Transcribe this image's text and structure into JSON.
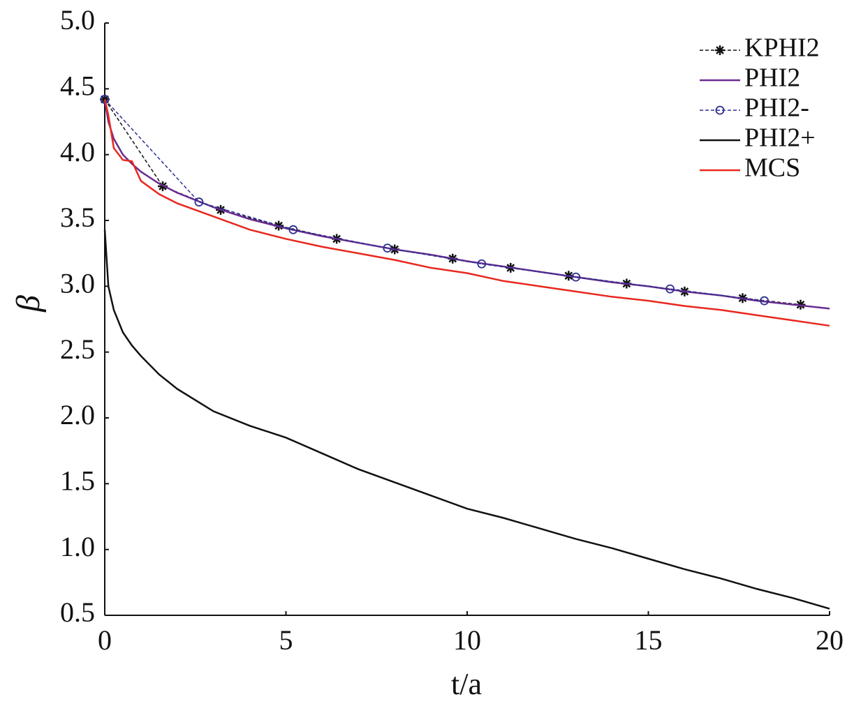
{
  "chart_data": {
    "type": "line",
    "x_label": "t/a",
    "y_label": "β",
    "xlim": [
      0,
      20
    ],
    "ylim": [
      0.5,
      5.0
    ],
    "xticks": [
      0,
      5,
      10,
      15,
      20
    ],
    "yticks": [
      0.5,
      {
        "value": 1,
        "label": "1.0"
      },
      1.5,
      {
        "value": 2,
        "label": "2.0"
      },
      2.5,
      {
        "value": 3,
        "label": "3.0"
      },
      3.5,
      {
        "value": 4,
        "label": "4.0"
      },
      4.5,
      {
        "value": 5,
        "label": "5.0"
      }
    ],
    "grid": false,
    "legend": "upper right",
    "x": [
      0,
      0.1,
      0.25,
      0.5,
      0.75,
      1,
      1.5,
      2,
      3,
      4,
      5,
      6,
      7,
      8,
      9,
      10,
      11,
      12,
      13,
      14,
      15,
      16,
      17,
      18,
      19,
      20
    ],
    "series": [
      {
        "name": "KPHI2",
        "color": "#111111",
        "marker": "star",
        "dash": true,
        "x": [
          0,
          1.6,
          3.2,
          4.8,
          6.4,
          8.0,
          9.6,
          11.2,
          12.8,
          14.4,
          16.0,
          17.6,
          19.2
        ],
        "values": [
          4.42,
          3.76,
          3.58,
          3.46,
          3.36,
          3.28,
          3.21,
          3.14,
          3.08,
          3.02,
          2.96,
          2.91,
          2.86
        ]
      },
      {
        "name": "PHI2",
        "color": "#6a2c91",
        "values": [
          4.42,
          4.25,
          4.12,
          4.0,
          3.93,
          3.87,
          3.78,
          3.71,
          3.6,
          3.51,
          3.44,
          3.38,
          3.33,
          3.28,
          3.24,
          3.19,
          3.15,
          3.11,
          3.07,
          3.03,
          3.0,
          2.96,
          2.93,
          2.89,
          2.86,
          2.83
        ]
      },
      {
        "name": "PHI2-",
        "color": "#2b2f8f",
        "marker": "circle",
        "dash": true,
        "x": [
          0,
          2.6,
          5.2,
          7.8,
          10.4,
          13.0,
          15.6,
          18.2
        ],
        "values": [
          4.42,
          3.64,
          3.43,
          3.29,
          3.17,
          3.07,
          2.98,
          2.89
        ]
      },
      {
        "name": "PHI2+",
        "color": "#111111",
        "values": [
          3.43,
          3.0,
          2.82,
          2.65,
          2.55,
          2.47,
          2.33,
          2.22,
          2.05,
          1.94,
          1.85,
          1.73,
          1.61,
          1.51,
          1.41,
          1.31,
          1.24,
          1.16,
          1.08,
          1.01,
          0.93,
          0.85,
          0.78,
          0.7,
          0.63,
          0.55
        ]
      },
      {
        "name": "MCS",
        "color": "#e8281e",
        "values": [
          4.42,
          4.3,
          4.05,
          3.96,
          3.95,
          3.8,
          3.7,
          3.63,
          3.53,
          3.43,
          3.36,
          3.3,
          3.25,
          3.2,
          3.14,
          3.1,
          3.04,
          3.0,
          2.96,
          2.92,
          2.89,
          2.85,
          2.82,
          2.78,
          2.74,
          2.7
        ]
      }
    ]
  }
}
